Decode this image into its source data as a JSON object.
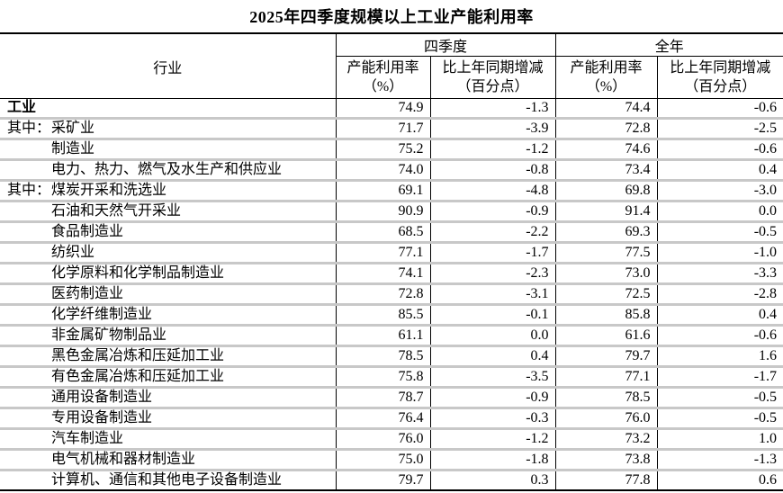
{
  "page": {
    "title": "2025年四季度规模以上工业产能利用率"
  },
  "table": {
    "header": {
      "industry": "行业",
      "q4_group": "四季度",
      "year_group": "全年",
      "rate_line1": "产能利用率",
      "rate_line2": "（%）",
      "change_line1": "比上年同期增减",
      "change_line2": "（百分点）"
    },
    "rows": [
      {
        "prefix": "",
        "indent": false,
        "bold": true,
        "name": "工业",
        "q4_rate": "74.9",
        "q4_chg": "-1.3",
        "yr_rate": "74.4",
        "yr_chg": "-0.6"
      },
      {
        "prefix": "其中：",
        "indent": true,
        "bold": false,
        "name": "采矿业",
        "q4_rate": "71.7",
        "q4_chg": "-3.9",
        "yr_rate": "72.8",
        "yr_chg": "-2.5"
      },
      {
        "prefix": "",
        "indent": true,
        "bold": false,
        "name": "制造业",
        "q4_rate": "75.2",
        "q4_chg": "-1.2",
        "yr_rate": "74.6",
        "yr_chg": "-0.6"
      },
      {
        "prefix": "",
        "indent": true,
        "bold": false,
        "name": "电力、热力、燃气及水生产和供应业",
        "q4_rate": "74.0",
        "q4_chg": "-0.8",
        "yr_rate": "73.4",
        "yr_chg": "0.4"
      },
      {
        "prefix": "其中：",
        "indent": true,
        "bold": false,
        "name": "煤炭开采和洗选业",
        "q4_rate": "69.1",
        "q4_chg": "-4.8",
        "yr_rate": "69.8",
        "yr_chg": "-3.0"
      },
      {
        "prefix": "",
        "indent": true,
        "bold": false,
        "name": "石油和天然气开采业",
        "q4_rate": "90.9",
        "q4_chg": "-0.9",
        "yr_rate": "91.4",
        "yr_chg": "0.0"
      },
      {
        "prefix": "",
        "indent": true,
        "bold": false,
        "name": "食品制造业",
        "q4_rate": "68.5",
        "q4_chg": "-2.2",
        "yr_rate": "69.3",
        "yr_chg": "-0.5"
      },
      {
        "prefix": "",
        "indent": true,
        "bold": false,
        "name": "纺织业",
        "q4_rate": "77.1",
        "q4_chg": "-1.7",
        "yr_rate": "77.5",
        "yr_chg": "-1.0"
      },
      {
        "prefix": "",
        "indent": true,
        "bold": false,
        "name": "化学原料和化学制品制造业",
        "q4_rate": "74.1",
        "q4_chg": "-2.3",
        "yr_rate": "73.0",
        "yr_chg": "-3.3"
      },
      {
        "prefix": "",
        "indent": true,
        "bold": false,
        "name": "医药制造业",
        "q4_rate": "72.8",
        "q4_chg": "-3.1",
        "yr_rate": "72.5",
        "yr_chg": "-2.8"
      },
      {
        "prefix": "",
        "indent": true,
        "bold": false,
        "name": "化学纤维制造业",
        "q4_rate": "85.5",
        "q4_chg": "-0.1",
        "yr_rate": "85.8",
        "yr_chg": "0.4"
      },
      {
        "prefix": "",
        "indent": true,
        "bold": false,
        "name": "非金属矿物制品业",
        "q4_rate": "61.1",
        "q4_chg": "0.0",
        "yr_rate": "61.6",
        "yr_chg": "-0.6"
      },
      {
        "prefix": "",
        "indent": true,
        "bold": false,
        "name": "黑色金属冶炼和压延加工业",
        "q4_rate": "78.5",
        "q4_chg": "0.4",
        "yr_rate": "79.7",
        "yr_chg": "1.6"
      },
      {
        "prefix": "",
        "indent": true,
        "bold": false,
        "name": "有色金属冶炼和压延加工业",
        "q4_rate": "75.8",
        "q4_chg": "-3.5",
        "yr_rate": "77.1",
        "yr_chg": "-1.7"
      },
      {
        "prefix": "",
        "indent": true,
        "bold": false,
        "name": "通用设备制造业",
        "q4_rate": "78.7",
        "q4_chg": "-0.9",
        "yr_rate": "78.5",
        "yr_chg": "-0.5"
      },
      {
        "prefix": "",
        "indent": true,
        "bold": false,
        "name": "专用设备制造业",
        "q4_rate": "76.4",
        "q4_chg": "-0.3",
        "yr_rate": "76.0",
        "yr_chg": "-0.5"
      },
      {
        "prefix": "",
        "indent": true,
        "bold": false,
        "name": "汽车制造业",
        "q4_rate": "76.0",
        "q4_chg": "-1.2",
        "yr_rate": "73.2",
        "yr_chg": "1.0"
      },
      {
        "prefix": "",
        "indent": true,
        "bold": false,
        "name": "电气机械和器材制造业",
        "q4_rate": "75.0",
        "q4_chg": "-1.8",
        "yr_rate": "73.8",
        "yr_chg": "-1.3"
      },
      {
        "prefix": "",
        "indent": true,
        "bold": false,
        "name": "计算机、通信和其他电子设备制造业",
        "q4_rate": "79.7",
        "q4_chg": "0.3",
        "yr_rate": "77.8",
        "yr_chg": "0.6"
      }
    ]
  },
  "chart_data": {
    "type": "table",
    "title": "2025年四季度规模以上工业产能利用率",
    "columns": [
      "行业",
      "四季度 产能利用率（%）",
      "四季度 比上年同期增减（百分点）",
      "全年 产能利用率（%）",
      "全年 比上年同期增减（百分点）"
    ],
    "rows": [
      [
        "工业",
        74.9,
        -1.3,
        74.4,
        -0.6
      ],
      [
        "其中：采矿业",
        71.7,
        -3.9,
        72.8,
        -2.5
      ],
      [
        "制造业",
        75.2,
        -1.2,
        74.6,
        -0.6
      ],
      [
        "电力、热力、燃气及水生产和供应业",
        74.0,
        -0.8,
        73.4,
        0.4
      ],
      [
        "其中：煤炭开采和洗选业",
        69.1,
        -4.8,
        69.8,
        -3.0
      ],
      [
        "石油和天然气开采业",
        90.9,
        -0.9,
        91.4,
        0.0
      ],
      [
        "食品制造业",
        68.5,
        -2.2,
        69.3,
        -0.5
      ],
      [
        "纺织业",
        77.1,
        -1.7,
        77.5,
        -1.0
      ],
      [
        "化学原料和化学制品制造业",
        74.1,
        -2.3,
        73.0,
        -3.3
      ],
      [
        "医药制造业",
        72.8,
        -3.1,
        72.5,
        -2.8
      ],
      [
        "化学纤维制造业",
        85.5,
        -0.1,
        85.8,
        0.4
      ],
      [
        "非金属矿物制品业",
        61.1,
        0.0,
        61.6,
        -0.6
      ],
      [
        "黑色金属冶炼和压延加工业",
        78.5,
        0.4,
        79.7,
        1.6
      ],
      [
        "有色金属冶炼和压延加工业",
        75.8,
        -3.5,
        77.1,
        -1.7
      ],
      [
        "通用设备制造业",
        78.7,
        -0.9,
        78.5,
        -0.5
      ],
      [
        "专用设备制造业",
        76.4,
        -0.3,
        76.0,
        -0.5
      ],
      [
        "汽车制造业",
        76.0,
        -1.2,
        73.2,
        1.0
      ],
      [
        "电气机械和器材制造业",
        75.0,
        -1.8,
        73.8,
        -1.3
      ],
      [
        "计算机、通信和其他电子设备制造业",
        79.7,
        0.3,
        77.8,
        0.6
      ]
    ],
    "colors": {
      "row_separator": "#c8c8c8",
      "table_border": "#000000",
      "text": "#000000",
      "background": "#ffffff"
    }
  }
}
